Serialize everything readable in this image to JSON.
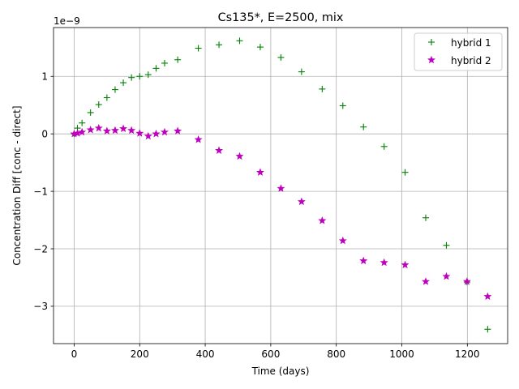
{
  "chart_data": {
    "type": "scatter",
    "title": "Cs135*, E=2500, mix",
    "xlabel": "Time (days)",
    "ylabel": "Concentration Diff [conc - direct]",
    "y_offset_label": "1e−9",
    "xlim": [
      -63,
      1323
    ],
    "ylim": [
      -3.65,
      1.85
    ],
    "x_ticks": [
      0,
      200,
      400,
      600,
      800,
      1000,
      1200
    ],
    "x_tick_labels": [
      "0",
      "200",
      "400",
      "600",
      "800",
      "1000",
      "1200"
    ],
    "y_ticks": [
      -3,
      -2,
      -1,
      0,
      1
    ],
    "y_tick_labels": [
      "−3",
      "−2",
      "−1",
      "0",
      "1"
    ],
    "grid": true,
    "legend_position": "top-right",
    "series": [
      {
        "name": "hybrid 1",
        "marker": "plus",
        "color": "#008000",
        "x": [
          0,
          10,
          24,
          50,
          75,
          100,
          125,
          150,
          175,
          200,
          226,
          250,
          276,
          316,
          379,
          442,
          505,
          568,
          631,
          694,
          757,
          820,
          883,
          946,
          1010,
          1073,
          1136,
          1199,
          1262
        ],
        "y": [
          0.0,
          0.1,
          0.19,
          0.37,
          0.51,
          0.63,
          0.77,
          0.89,
          0.98,
          1.0,
          1.03,
          1.14,
          1.23,
          1.29,
          1.49,
          1.55,
          1.62,
          1.51,
          1.33,
          1.08,
          0.78,
          0.49,
          0.12,
          -0.22,
          -0.67,
          -1.46,
          -1.94,
          -2.58,
          -3.4
        ]
      },
      {
        "name": "hybrid 2",
        "marker": "star",
        "color": "#bf00bf",
        "x": [
          0,
          10,
          24,
          50,
          75,
          100,
          125,
          150,
          175,
          200,
          226,
          250,
          276,
          316,
          379,
          442,
          505,
          568,
          631,
          694,
          757,
          820,
          883,
          946,
          1010,
          1073,
          1136,
          1199,
          1262
        ],
        "y": [
          0.0,
          0.01,
          0.03,
          0.07,
          0.1,
          0.05,
          0.06,
          0.09,
          0.06,
          0.01,
          -0.04,
          0.0,
          0.03,
          0.05,
          -0.1,
          -0.29,
          -0.39,
          -0.67,
          -0.95,
          -1.18,
          -1.51,
          -1.86,
          -2.21,
          -2.24,
          -2.28,
          -2.57,
          -2.48,
          -2.57,
          -2.83
        ]
      }
    ]
  }
}
